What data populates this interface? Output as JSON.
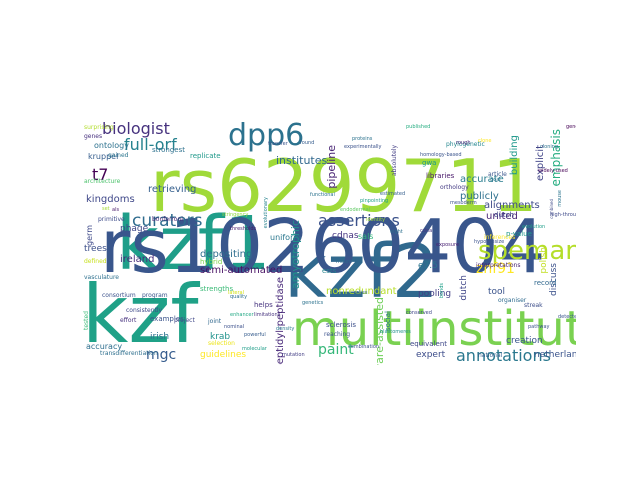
{
  "words": [
    {
      "text": "rs6299711",
      "color": "#a0da39"
    },
    {
      "text": "kzf1",
      "color": "#1f9e89"
    },
    {
      "text": "kzf2",
      "color": "#30698e"
    },
    {
      "text": "kzf",
      "color": "#1fa187"
    },
    {
      "text": "rs10260404",
      "color": "#39568c"
    },
    {
      "text": "multiinstitutional",
      "color": "#7ad151"
    },
    {
      "text": "dpp6",
      "color": "#2c728e"
    },
    {
      "text": "spemann/mangold",
      "color": "#b5de2b"
    },
    {
      "text": "assertions",
      "color": "#3b528b"
    },
    {
      "text": "biologist",
      "color": "#46327e"
    },
    {
      "text": "full-orf",
      "color": "#26828e"
    },
    {
      "text": "curators",
      "color": "#2f6c8e"
    },
    {
      "text": "paint",
      "color": "#35b779"
    },
    {
      "text": "znf91",
      "color": "#fde725"
    },
    {
      "text": "mgc",
      "color": "#365c8d"
    },
    {
      "text": "t7",
      "color": "#440154"
    },
    {
      "text": "annotations",
      "color": "#2a788e"
    },
    {
      "text": "emphasis",
      "color": "#26ad81"
    },
    {
      "text": "institutes",
      "color": "#31688e"
    },
    {
      "text": "pipeline",
      "color": "#482374"
    },
    {
      "text": "amyotrophic",
      "color": "#21918c"
    },
    {
      "text": "software-assisted",
      "color": "#6ece58"
    },
    {
      "text": "alignments",
      "color": "#3e4a89"
    },
    {
      "text": "building",
      "color": "#1f988b"
    },
    {
      "text": "explicit",
      "color": "#414487"
    },
    {
      "text": "united",
      "color": "#482475"
    },
    {
      "text": "accurate",
      "color": "#287c8e"
    },
    {
      "text": "publicly",
      "color": "#2d708e"
    },
    {
      "text": "retrieving",
      "color": "#355f8d"
    },
    {
      "text": "kingdoms",
      "color": "#3f4889"
    },
    {
      "text": "depositing",
      "color": "#2e6e8e"
    },
    {
      "text": "semi-automated",
      "color": "#471063"
    },
    {
      "text": "ireland",
      "color": "#472d7b"
    },
    {
      "text": "nonredundant",
      "color": "#b8de29"
    },
    {
      "text": "dipeptidyl-peptidase",
      "color": "#482979"
    },
    {
      "text": "guidelines",
      "color": "#fde725"
    },
    {
      "text": "netherlands",
      "color": "#3a548c"
    },
    {
      "text": "creation",
      "color": "#39558c"
    },
    {
      "text": "expert",
      "color": "#3d4d8a"
    },
    {
      "text": "pooling",
      "color": "#433e85"
    },
    {
      "text": "dutch",
      "color": "#404688"
    },
    {
      "text": "discuss",
      "color": "#3b518b"
    },
    {
      "text": "tool",
      "color": "#3a538b"
    },
    {
      "text": "e7.5",
      "color": "#2b748e"
    },
    {
      "text": "polish",
      "color": "#c2df23"
    },
    {
      "text": "cdnas",
      "color": "#453581"
    },
    {
      "text": "sals",
      "color": "#31b57b"
    },
    {
      "text": "irish",
      "color": "#2c718e"
    },
    {
      "text": "krab",
      "color": "#20928c"
    },
    {
      "text": "phage",
      "color": "#3f4788"
    },
    {
      "text": "trees",
      "color": "#3c4f8a"
    },
    {
      "text": "germ",
      "color": "#3e4989"
    },
    {
      "text": "kruppel",
      "color": "#365d8d"
    },
    {
      "text": "ontology",
      "color": "#2c718e"
    },
    {
      "text": "gwa",
      "color": "#1e9b8a"
    },
    {
      "text": "libraries",
      "color": "#48186a"
    },
    {
      "text": "dutch",
      "color": "#404688"
    },
    {
      "text": "p-value",
      "color": "#1f978b"
    },
    {
      "text": "ests",
      "color": "#25848e"
    },
    {
      "text": "uniform",
      "color": "#2a778e"
    },
    {
      "text": "helps",
      "color": "#46337f"
    },
    {
      "text": "strengths",
      "color": "#3aba76"
    },
    {
      "text": "hybrid",
      "color": "#7fd34e"
    },
    {
      "text": "social",
      "color": "#2a768e"
    },
    {
      "text": "sclerosis",
      "color": "#3c4f8a"
    },
    {
      "text": "reaching",
      "color": "#3b518b"
    },
    {
      "text": "equivalent",
      "color": "#3f4889"
    },
    {
      "text": "national",
      "color": "#355e8d"
    },
    {
      "text": "record",
      "color": "#31688e"
    },
    {
      "text": "organiser",
      "color": "#2f6b8e"
    },
    {
      "text": "interpretations",
      "color": "#482071"
    },
    {
      "text": "inferences",
      "color": "#fde725"
    },
    {
      "text": "accuracy",
      "color": "#2e6e8e"
    },
    {
      "text": "examples",
      "color": "#3a538b"
    },
    {
      "text": "strongest",
      "color": "#2d718e"
    },
    {
      "text": "replicate",
      "color": "#1f998a"
    },
    {
      "text": "gained",
      "color": "#2b758e"
    },
    {
      "text": "architecture",
      "color": "#4cc26c"
    },
    {
      "text": "primitive",
      "color": "#3e4c8a"
    },
    {
      "text": "vasculature",
      "color": "#2d708e"
    },
    {
      "text": "consortium",
      "color": "#3b518b"
    },
    {
      "text": "program",
      "color": "#39568c"
    },
    {
      "text": "effort",
      "color": "#46317e"
    },
    {
      "text": "project",
      "color": "#3f4788"
    },
    {
      "text": "consistently",
      "color": "#3e4989"
    },
    {
      "text": "transdifferentiation",
      "color": "#2e6f8e"
    },
    {
      "text": "bonferroni",
      "color": "#482576"
    },
    {
      "text": "phylogenetic",
      "color": "#24868e"
    },
    {
      "text": "absolutely",
      "color": "#433e85"
    },
    {
      "text": "orthology",
      "color": "#443a83"
    },
    {
      "text": "article",
      "color": "#39568c"
    },
    {
      "text": "streak",
      "color": "#3d4e8a"
    },
    {
      "text": "selection",
      "color": "#ece51b"
    },
    {
      "text": "joint",
      "color": "#31688e"
    },
    {
      "text": "surprising",
      "color": "#b2dd2d"
    },
    {
      "text": "genes",
      "color": "#46307e"
    },
    {
      "text": "set",
      "color": "#a5db36"
    },
    {
      "text": "als",
      "color": "#48186a"
    },
    {
      "text": "defined",
      "color": "#c8e020"
    },
    {
      "text": "tested",
      "color": "#3aba76"
    },
    {
      "text": "enhancer",
      "color": "#22a884"
    },
    {
      "text": "thresholds",
      "color": "#481a6c"
    },
    {
      "text": "mouse",
      "color": "#2b748e"
    },
    {
      "text": "gene",
      "color": "#440154"
    },
    {
      "text": "cdna",
      "color": "#443983"
    },
    {
      "text": "hypothesize",
      "color": "#3b528b"
    },
    {
      "text": "stringency",
      "color": "#90d743"
    },
    {
      "text": "pinpointing",
      "color": "#1fa088"
    },
    {
      "text": "homology-based",
      "color": "#3a548c"
    },
    {
      "text": "evolutionary",
      "color": "#26828e"
    },
    {
      "text": "functional",
      "color": "#2c738e"
    },
    {
      "text": "lateral",
      "color": "#d2e21b"
    },
    {
      "text": "endodermal",
      "color": "#5ec962"
    },
    {
      "text": "nominal",
      "color": "#3c508b"
    },
    {
      "text": "bonds",
      "color": "#1fa088"
    },
    {
      "text": "relies",
      "color": "#31688e"
    },
    {
      "text": "powerful",
      "color": "#365c8d"
    },
    {
      "text": "quality",
      "color": "#2e6e8e"
    },
    {
      "text": "transfer",
      "color": "#3a548c"
    },
    {
      "text": "experimentally",
      "color": "#3b528b"
    },
    {
      "text": "proteins",
      "color": "#2c728e"
    },
    {
      "text": "published",
      "color": "#26ad81"
    },
    {
      "text": "rough",
      "color": "#482878"
    },
    {
      "text": "found",
      "color": "#365d8d"
    },
    {
      "text": "mesoderm",
      "color": "#3b528b"
    },
    {
      "text": "mount",
      "color": "#2f6c8e"
    },
    {
      "text": "clone",
      "color": "#fde725"
    },
    {
      "text": "limitations",
      "color": "#46327e"
    },
    {
      "text": "cloning",
      "color": "#2c728e"
    },
    {
      "text": "high-throughput",
      "color": "#3e4989"
    },
    {
      "text": "evolution",
      "color": "#1f9e89"
    },
    {
      "text": "goal",
      "color": "#2a788e"
    },
    {
      "text": "widely-used",
      "color": "#440154"
    },
    {
      "text": "combined",
      "color": "#3e4989"
    },
    {
      "text": "estimated",
      "color": "#355f8d"
    },
    {
      "text": "identity",
      "color": "#a0da39"
    },
    {
      "text": "eight",
      "color": "#2d708e"
    },
    {
      "text": "density",
      "color": "#2a788e"
    },
    {
      "text": "genetics",
      "color": "#2c728e"
    },
    {
      "text": "conserved",
      "color": "#3f4788"
    },
    {
      "text": "blastomeres",
      "color": "#21918c"
    },
    {
      "text": "combination",
      "color": "#3b528b"
    },
    {
      "text": "mutation",
      "color": "#433e85"
    },
    {
      "text": "exposure",
      "color": "#482173"
    },
    {
      "text": "pathway",
      "color": "#3b528b"
    },
    {
      "text": "detected",
      "color": "#39568c"
    },
    {
      "text": "molecular",
      "color": "#1f9e89"
    }
  ]
}
